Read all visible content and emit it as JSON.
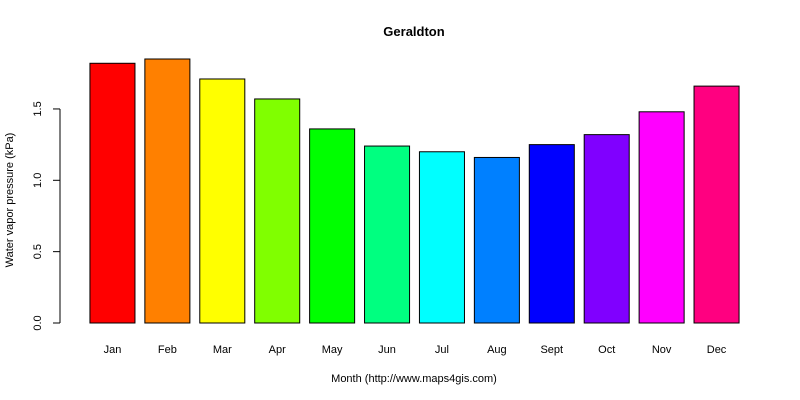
{
  "chart_data": {
    "type": "bar",
    "title": "Geraldton",
    "xlabel": "Month (http://www.maps4gis.com)",
    "ylabel": "Water vapor pressure (kPa)",
    "categories": [
      "Jan",
      "Feb",
      "Mar",
      "Apr",
      "May",
      "Jun",
      "Jul",
      "Aug",
      "Sept",
      "Oct",
      "Nov",
      "Dec"
    ],
    "values": [
      1.82,
      1.85,
      1.71,
      1.57,
      1.36,
      1.24,
      1.2,
      1.16,
      1.25,
      1.32,
      1.48,
      1.66
    ],
    "colors": [
      "#ff0000",
      "#ff8000",
      "#ffff00",
      "#80ff00",
      "#00ff00",
      "#00ff80",
      "#00ffff",
      "#0080ff",
      "#0000ff",
      "#8000ff",
      "#ff00ff",
      "#ff0080"
    ],
    "ylim": [
      0,
      1.85
    ],
    "yticks": [
      {
        "value": 0,
        "label": "0.0"
      },
      {
        "value": 0.5,
        "label": "0.5"
      },
      {
        "value": 1,
        "label": "1.0"
      },
      {
        "value": 1.5,
        "label": "1.5"
      }
    ],
    "grid": false,
    "legend": "none"
  }
}
